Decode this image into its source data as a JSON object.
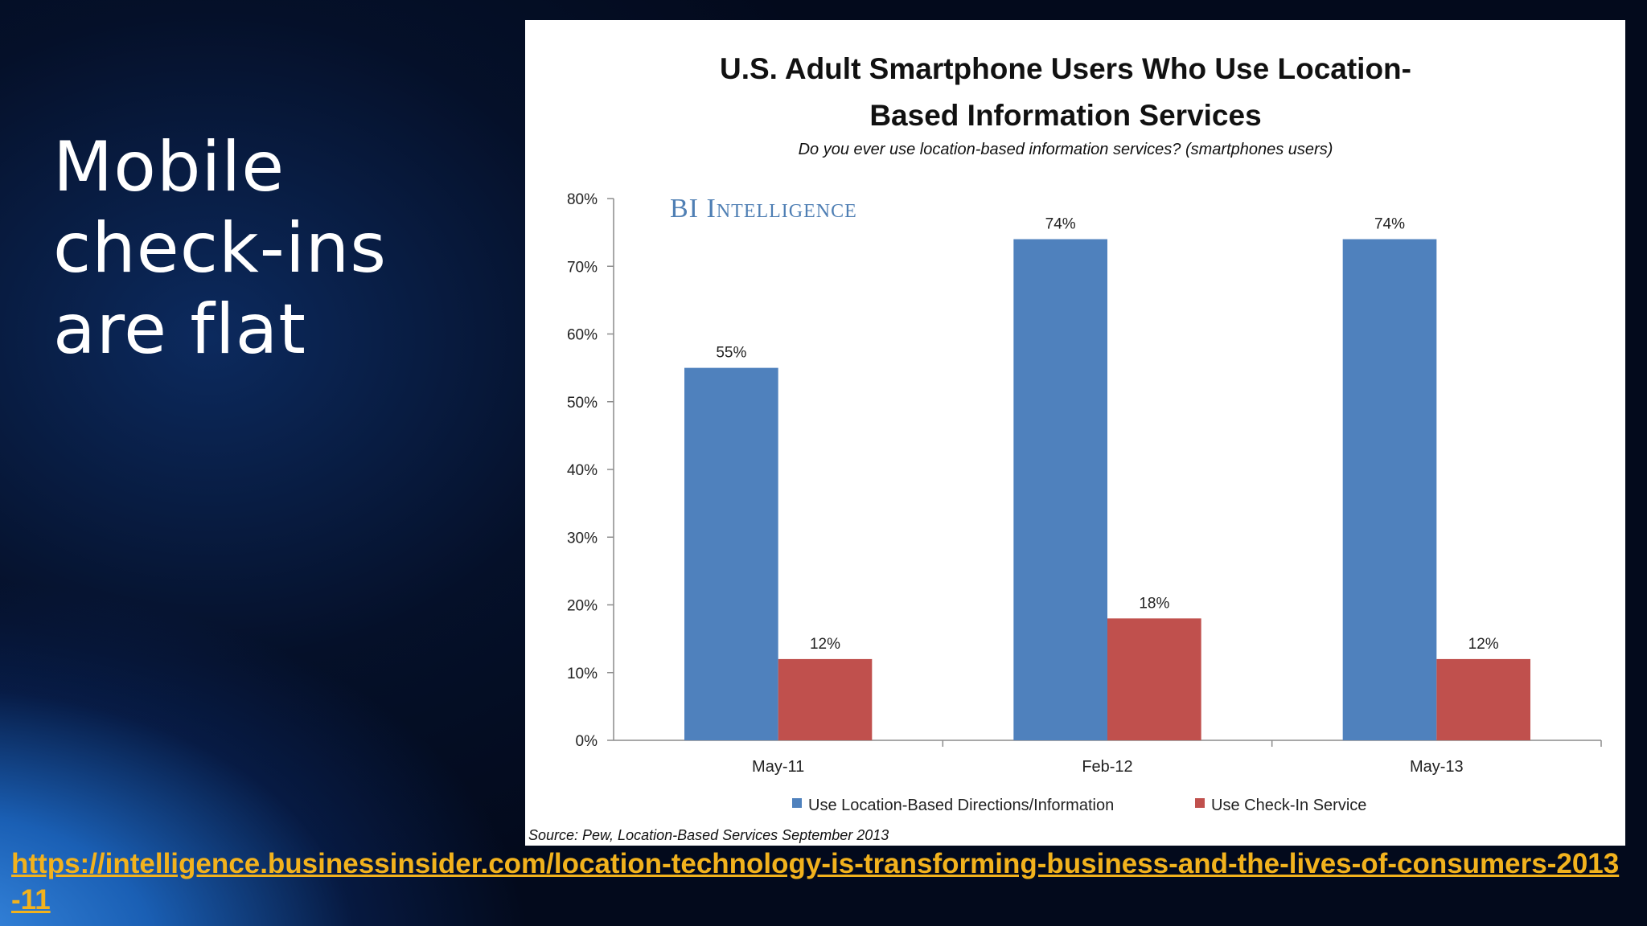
{
  "slide": {
    "title_lines": [
      "Mobile",
      "check-ins",
      "are flat"
    ],
    "link_text": "https://intelligence.businessinsider.com/location-technology-is-transforming-business-and-the-lives-of-consumers-2013-11"
  },
  "chart_data": {
    "type": "bar",
    "title_line1": "U.S. Adult Smartphone Users Who Use Location-",
    "title_line2": "Based Information Services",
    "subtitle": "Do you ever use location-based information services? (smartphones users)",
    "watermark": "BI Intelligence",
    "source": "Source: Pew, Location-Based Services September 2013",
    "categories": [
      "May-11",
      "Feb-12",
      "May-13"
    ],
    "series": [
      {
        "name": "Use Location-Based Directions/Information",
        "values": [
          55,
          74,
          74
        ],
        "color": "#4f81bd"
      },
      {
        "name": "Use Check-In Service",
        "values": [
          12,
          18,
          12
        ],
        "color": "#c0504d"
      }
    ],
    "value_suffix": "%",
    "ylim": [
      0,
      80
    ],
    "yticks": [
      0,
      10,
      20,
      30,
      40,
      50,
      60,
      70,
      80
    ],
    "grid": false,
    "legend_position": "bottom"
  }
}
